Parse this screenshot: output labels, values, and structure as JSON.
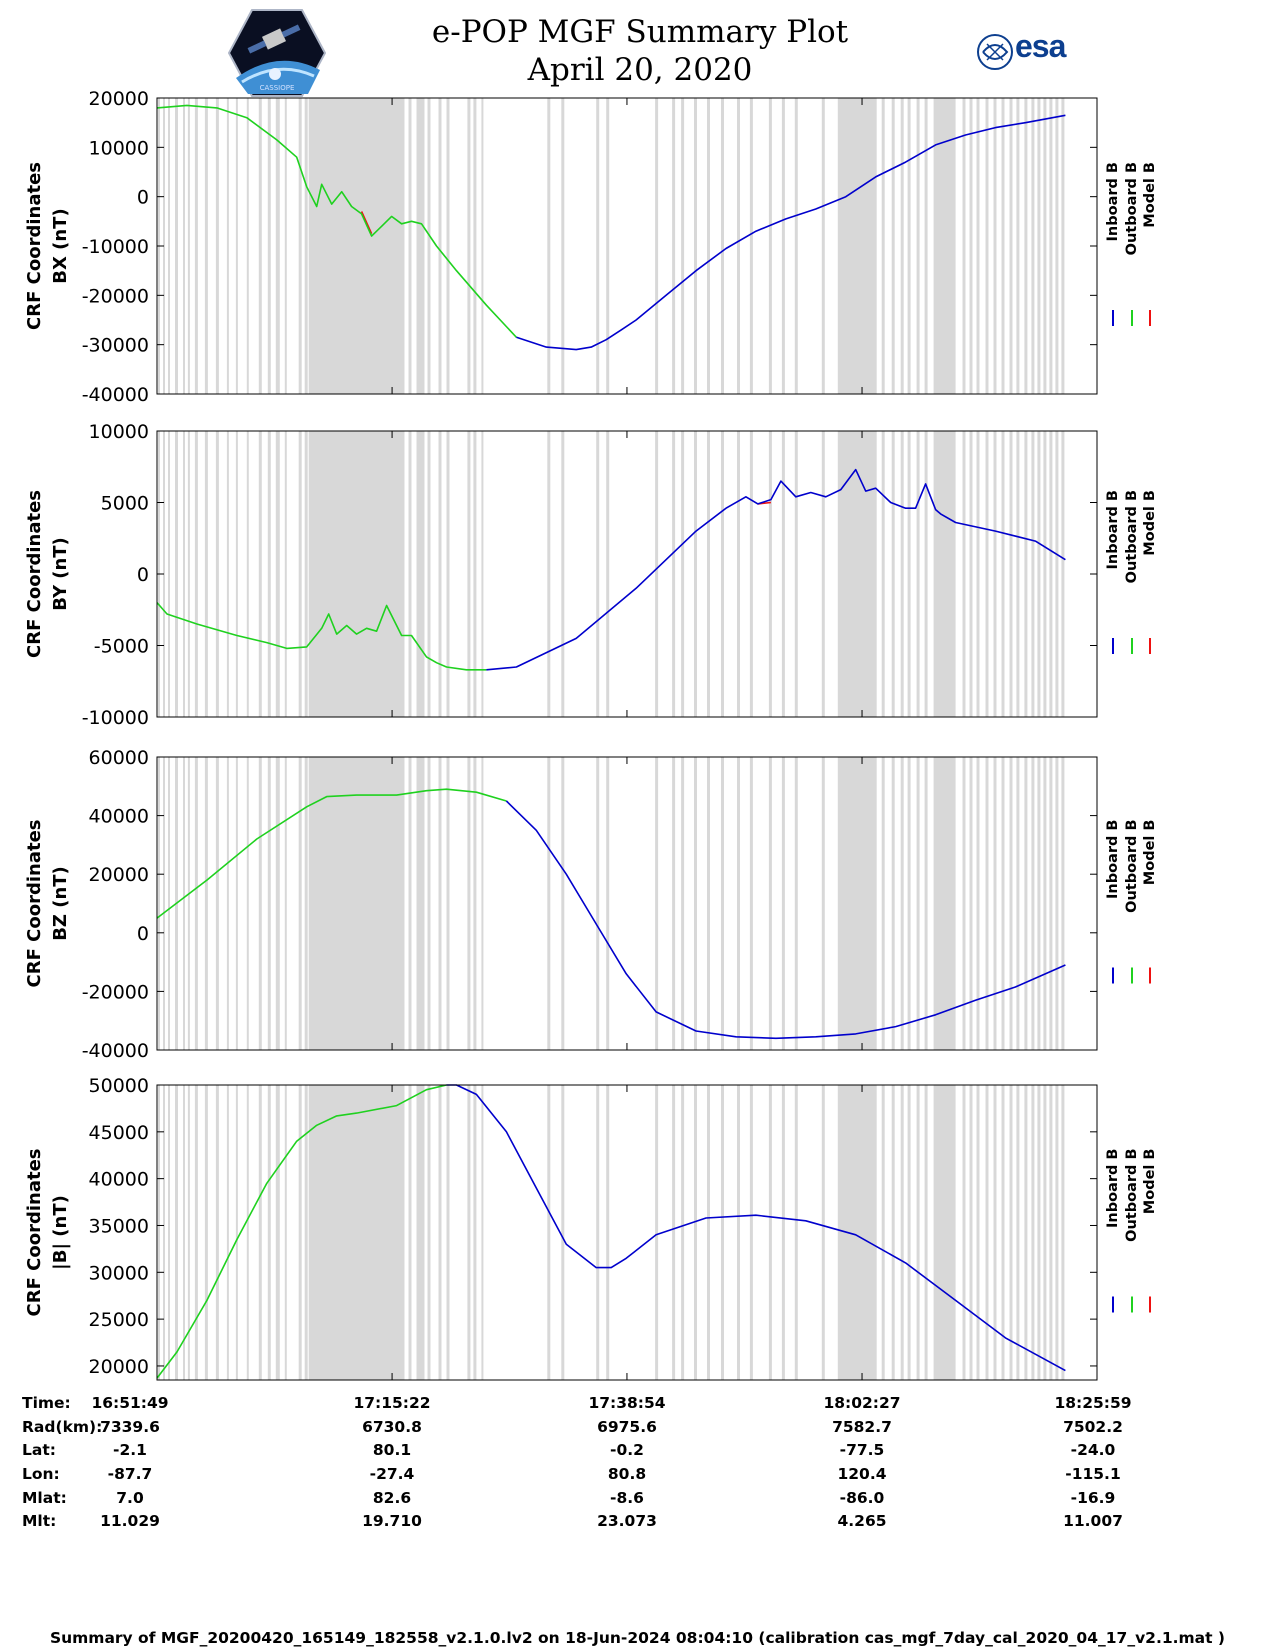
{
  "header": {
    "title": "e-POP MGF Summary Plot",
    "date": "April 20, 2020",
    "logo_left": "CASSIOPE",
    "logo_right": "esa"
  },
  "legend": [
    "Inboard B",
    "Outboard B",
    "Model B"
  ],
  "colors": {
    "inboard": "#0000cc",
    "outboard": "#1fd11f",
    "model": "#ee1111",
    "shade": "#d8d8d8"
  },
  "chart_data": [
    {
      "type": "line",
      "ylabel": [
        "CRF Coordinates",
        "BX (nT)"
      ],
      "ylim": [
        -40000,
        20000
      ],
      "yticks": [
        20000,
        10000,
        0,
        -10000,
        -20000,
        -30000,
        -40000
      ],
      "tick_labels": [
        "20000",
        "10000",
        "0",
        "-10000",
        "-20000",
        "-30000",
        "-40000"
      ],
      "x_minutes": [
        0,
        3,
        6,
        9,
        12,
        14,
        15,
        16,
        16.5,
        17.5,
        18.5,
        19.5,
        20.5,
        21.5,
        22.5,
        23.5,
        24.5,
        25.5,
        26.5,
        28,
        30,
        33,
        36,
        39,
        42,
        43.5,
        45,
        46.5,
        48,
        51,
        54,
        57,
        60,
        63,
        66,
        69,
        72,
        75,
        78,
        81,
        84,
        87,
        91
      ],
      "series": [
        {
          "name": "Outboard B",
          "values": [
            18000,
            18500,
            18000,
            16000,
            11500,
            8000,
            2000,
            -2000,
            2500,
            -1500,
            1000,
            -2000,
            -3500,
            -8000,
            -6000,
            -4000,
            -5500,
            -5000,
            -5500,
            -10000,
            -15000,
            -22000,
            -28500,
            null,
            null,
            null,
            null,
            null,
            null,
            null,
            null,
            null,
            null,
            null,
            null,
            null,
            null,
            null,
            null,
            null,
            null,
            null,
            null
          ]
        },
        {
          "name": "Inboard B",
          "values": [
            null,
            null,
            null,
            null,
            null,
            null,
            null,
            null,
            null,
            null,
            null,
            null,
            null,
            null,
            null,
            null,
            null,
            null,
            null,
            null,
            null,
            null,
            -28500,
            -30500,
            -31000,
            -30500,
            -29000,
            -27000,
            -25000,
            -20000,
            -15000,
            -10500,
            -7000,
            -4500,
            -2500,
            0,
            4000,
            7000,
            10500,
            12500,
            14000,
            15000,
            16500
          ]
        },
        {
          "name": "Model B",
          "values": [
            null,
            null,
            null,
            null,
            null,
            null,
            null,
            null,
            null,
            null,
            null,
            null,
            -3000,
            -7500,
            null,
            null,
            null,
            null,
            null,
            null,
            null,
            null,
            null,
            null,
            null,
            null,
            null,
            null,
            null,
            null,
            null,
            null,
            null,
            null,
            null,
            null,
            null,
            null,
            null,
            null,
            null,
            null,
            null
          ]
        }
      ]
    },
    {
      "type": "line",
      "ylabel": [
        "CRF Coordinates",
        "BY (nT)"
      ],
      "ylim": [
        -10000,
        10000
      ],
      "yticks": [
        10000,
        5000,
        0,
        -5000,
        -10000
      ],
      "tick_labels": [
        "10000",
        "5000",
        "0",
        "-5000",
        "-10000"
      ],
      "x_minutes": [
        0,
        1,
        4,
        8,
        11,
        13,
        15,
        16.5,
        17.2,
        18,
        19,
        20,
        21,
        22,
        23,
        24.5,
        25.5,
        27,
        28,
        29,
        31,
        33,
        36,
        42,
        48,
        54,
        57,
        59,
        60.2,
        61.5,
        62.5,
        64,
        65.5,
        67,
        68.5,
        70,
        71,
        72,
        73.5,
        75,
        76,
        77,
        78,
        78.5,
        80,
        84,
        88,
        91
      ],
      "series": [
        {
          "name": "Outboard B",
          "values": [
            -2000,
            -2800,
            -3500,
            -4300,
            -4800,
            -5200,
            -5100,
            -3800,
            -2800,
            -4200,
            -3600,
            -4200,
            -3800,
            -4000,
            -2200,
            -4300,
            -4300,
            -5800,
            -6200,
            -6500,
            -6700,
            -6700,
            null,
            null,
            null,
            null,
            null,
            null,
            null,
            null,
            null,
            null,
            null,
            null,
            null,
            null,
            null,
            null,
            null,
            null,
            null,
            null,
            null,
            null,
            null,
            null,
            null,
            null
          ]
        },
        {
          "name": "Inboard B",
          "values": [
            null,
            null,
            null,
            null,
            null,
            null,
            null,
            null,
            null,
            null,
            null,
            null,
            null,
            null,
            null,
            null,
            null,
            null,
            null,
            null,
            null,
            -6700,
            -6500,
            -4500,
            -1000,
            3000,
            4600,
            5400,
            4900,
            5200,
            6500,
            5400,
            5700,
            5400,
            5900,
            7300,
            5800,
            6000,
            5000,
            4600,
            4600,
            6300,
            4500,
            4200,
            3600,
            3000,
            2300,
            1000
          ]
        },
        {
          "name": "Model B",
          "values": [
            null,
            null,
            null,
            null,
            null,
            null,
            null,
            null,
            null,
            -4500,
            null,
            -4500,
            null,
            null,
            null,
            -4500,
            null,
            null,
            null,
            null,
            null,
            null,
            null,
            null,
            null,
            null,
            null,
            null,
            4900,
            5000,
            null,
            null,
            null,
            null,
            null,
            null,
            null,
            null,
            4800,
            null,
            null,
            null,
            null,
            null,
            null,
            null,
            null,
            null
          ]
        }
      ]
    },
    {
      "type": "line",
      "ylabel": [
        "CRF Coordinates",
        "BZ (nT)"
      ],
      "ylim": [
        -40000,
        60000
      ],
      "yticks": [
        60000,
        40000,
        20000,
        0,
        -20000,
        -40000
      ],
      "tick_labels": [
        "60000",
        "40000",
        "20000",
        "0",
        "-20000",
        "-40000"
      ],
      "x_minutes": [
        0,
        5,
        10,
        15,
        17,
        20,
        24,
        27,
        29,
        32,
        35,
        38,
        41,
        44,
        47,
        50,
        54,
        58,
        62,
        66,
        70,
        74,
        78,
        82,
        86,
        91
      ],
      "series": [
        {
          "name": "Outboard B",
          "values": [
            5000,
            18000,
            32000,
            43000,
            46500,
            47000,
            47000,
            48500,
            49000,
            48000,
            45000,
            null,
            null,
            null,
            null,
            null,
            null,
            null,
            null,
            null,
            null,
            null,
            null,
            null,
            null,
            null
          ]
        },
        {
          "name": "Inboard B",
          "values": [
            null,
            null,
            null,
            null,
            null,
            null,
            null,
            null,
            null,
            null,
            45000,
            35000,
            20000,
            3000,
            -14000,
            -27000,
            -33500,
            -35500,
            -36000,
            -35500,
            -34500,
            -32000,
            -28000,
            -23000,
            -18500,
            -11000
          ]
        },
        {
          "name": "Model B",
          "values": []
        }
      ]
    },
    {
      "type": "line",
      "ylabel": [
        "CRF Coordinates",
        "|B| (nT)"
      ],
      "ylim": [
        18500,
        50000
      ],
      "yticks": [
        50000,
        45000,
        40000,
        35000,
        30000,
        25000,
        20000
      ],
      "tick_labels": [
        "50000",
        "45000",
        "40000",
        "35000",
        "30000",
        "25000",
        "20000"
      ],
      "x_minutes": [
        0,
        2,
        5,
        8,
        11,
        14,
        16,
        18,
        20,
        24,
        27,
        29,
        30,
        32,
        35,
        38,
        41,
        44,
        45.5,
        47,
        50,
        55,
        60,
        65,
        70,
        75,
        80,
        85,
        91
      ],
      "series": [
        {
          "name": "Outboard B",
          "values": [
            18700,
            21500,
            27000,
            33500,
            39500,
            44000,
            45700,
            46700,
            47000,
            47800,
            49500,
            50000,
            null,
            null,
            null,
            null,
            null,
            null,
            null,
            null,
            null,
            null,
            null,
            null,
            null,
            null,
            null,
            null,
            null
          ]
        },
        {
          "name": "Inboard B",
          "values": [
            null,
            null,
            null,
            null,
            null,
            null,
            null,
            null,
            null,
            null,
            null,
            50000,
            50000,
            49000,
            45000,
            39000,
            33000,
            30500,
            30500,
            31500,
            34000,
            35800,
            36100,
            35500,
            34000,
            31000,
            27000,
            23000,
            19500
          ]
        },
        {
          "name": "Model B",
          "values": []
        }
      ]
    }
  ],
  "shading": [
    [
      0.1,
      0.3
    ],
    [
      0.6,
      0.8
    ],
    [
      1.1,
      1.3
    ],
    [
      1.8,
      2.1
    ],
    [
      2.6,
      2.8
    ],
    [
      3.1,
      3.3
    ],
    [
      3.8,
      4.1
    ],
    [
      4.8,
      5.1
    ],
    [
      5.9,
      6.2
    ],
    [
      7.0,
      7.2
    ],
    [
      7.9,
      8.1
    ],
    [
      9.0,
      9.2
    ],
    [
      10.2,
      10.5
    ],
    [
      11.1,
      11.4
    ],
    [
      11.9,
      12.3
    ],
    [
      12.8,
      13.0
    ],
    [
      14.2,
      14.5
    ],
    [
      14.8,
      15.1
    ],
    [
      15.2,
      24.8
    ],
    [
      25.2,
      25.5
    ],
    [
      26.0,
      26.8
    ],
    [
      27.1,
      27.4
    ],
    [
      28.2,
      28.5
    ],
    [
      29.0,
      29.3
    ],
    [
      31.1,
      31.4
    ],
    [
      31.7,
      32.0
    ],
    [
      32.5,
      32.7
    ],
    [
      39.1,
      39.4
    ],
    [
      40.5,
      40.8
    ],
    [
      44.0,
      44.3
    ],
    [
      45.0,
      45.3
    ],
    [
      49.9,
      50.2
    ],
    [
      51.6,
      51.9
    ],
    [
      52.5,
      52.8
    ],
    [
      53.8,
      54.1
    ],
    [
      55.1,
      55.4
    ],
    [
      56.5,
      56.8
    ],
    [
      58.1,
      58.4
    ],
    [
      59.4,
      59.7
    ],
    [
      61.3,
      61.6
    ],
    [
      62.6,
      62.9
    ],
    [
      63.9,
      64.2
    ],
    [
      66.6,
      66.9
    ],
    [
      68.2,
      72.1
    ],
    [
      72.6,
      72.9
    ],
    [
      73.6,
      73.9
    ],
    [
      74.5,
      74.8
    ],
    [
      75.2,
      75.5
    ],
    [
      76.1,
      76.4
    ],
    [
      76.9,
      77.2
    ],
    [
      77.8,
      80.0
    ],
    [
      80.7,
      81.0
    ],
    [
      81.4,
      81.7
    ],
    [
      82.1,
      82.4
    ],
    [
      83.0,
      83.3
    ],
    [
      83.8,
      84.1
    ],
    [
      84.6,
      84.9
    ],
    [
      85.4,
      85.7
    ],
    [
      86.1,
      86.4
    ],
    [
      86.9,
      87.2
    ],
    [
      87.6,
      87.9
    ],
    [
      88.2,
      88.5
    ],
    [
      88.8,
      89.1
    ],
    [
      89.4,
      89.7
    ],
    [
      90.0,
      90.3
    ],
    [
      90.6,
      90.9
    ]
  ],
  "x_tick_minutes": [
    0,
    23.55,
    47.08,
    70.63,
    94.17
  ],
  "info_table": {
    "labels": [
      "Time:",
      "Rad(km):",
      "Lat:",
      "Lon:",
      "Mlat:",
      "Mlt:"
    ],
    "columns": [
      [
        "16:51:49",
        "7339.6",
        "-2.1",
        "-87.7",
        "7.0",
        "11.029"
      ],
      [
        "17:15:22",
        "6730.8",
        "80.1",
        "-27.4",
        "82.6",
        "19.710"
      ],
      [
        "17:38:54",
        "6975.6",
        "-0.2",
        "80.8",
        "-8.6",
        "23.073"
      ],
      [
        "18:02:27",
        "7582.7",
        "-77.5",
        "120.4",
        "-86.0",
        "4.265"
      ],
      [
        "18:25:59",
        "7502.2",
        "-24.0",
        "-115.1",
        "-16.9",
        "11.007"
      ]
    ]
  },
  "footer": "Summary of MGF_20200420_165149_182558_v2.1.0.lv2 on 18-Jun-2024 08:04:10 (calibration cas_mgf_7day_cal_2020_04_17_v2.1.mat )"
}
